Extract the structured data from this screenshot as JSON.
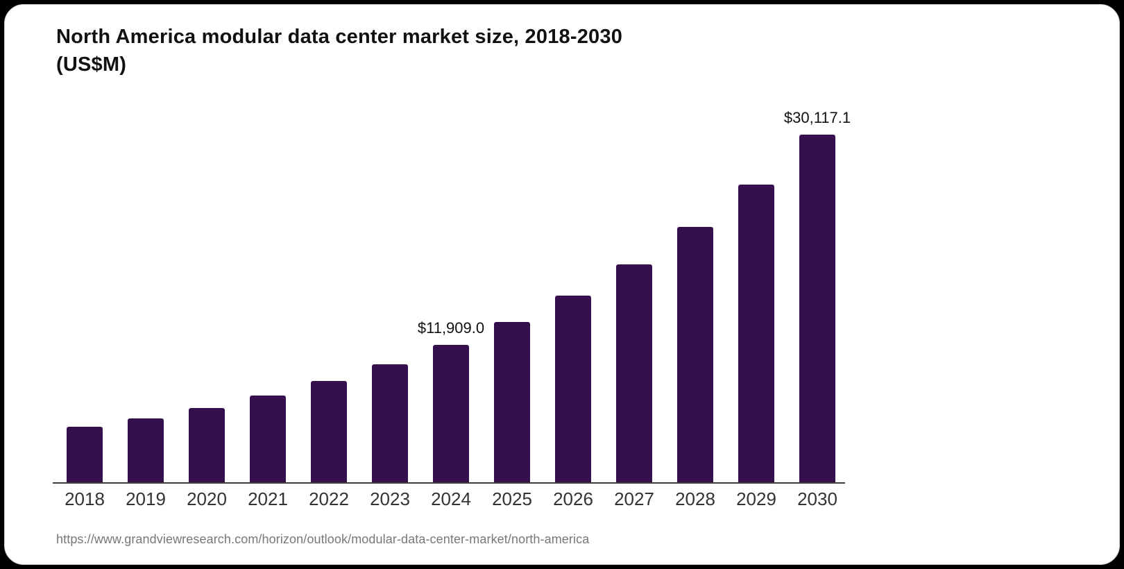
{
  "chart": {
    "title_line1": "North America modular data center market size, 2018-2030",
    "title_line2": "(US$M)"
  },
  "footer": {
    "source_url": "https://www.grandviewresearch.com/horizon/outlook/modular-data-center-market/north-america"
  },
  "colors": {
    "bar": "#36104D",
    "axis": "#3d3d3d",
    "title_text": "#111111",
    "tick_text": "#333333",
    "source_text": "#777777",
    "card_bg": "#ffffff",
    "page_bg": "#000000"
  },
  "chart_data": {
    "type": "bar",
    "title": "North America modular data center market size, 2018-2030 (US$M)",
    "unit": "US$M",
    "categories": [
      "2018",
      "2019",
      "2020",
      "2021",
      "2022",
      "2023",
      "2024",
      "2025",
      "2026",
      "2027",
      "2028",
      "2029",
      "2030"
    ],
    "values": [
      4800,
      5550,
      6450,
      7500,
      8800,
      10200,
      11909.0,
      13900,
      16200,
      18900,
      22100,
      25800,
      30117.1
    ],
    "annotations": [
      {
        "category": "2024",
        "label": "$11,909.0",
        "value": 11909.0
      },
      {
        "category": "2030",
        "label": "$30,117.1",
        "value": 30117.1
      }
    ],
    "xlabel": "",
    "ylabel": "",
    "ylim": [
      0,
      32700
    ],
    "grid": false,
    "legend": false,
    "y_axis_visible": false
  }
}
